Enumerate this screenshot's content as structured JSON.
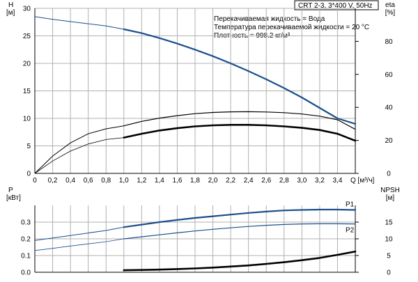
{
  "header": {
    "pump": "CRT 2-3, 3*400 V, 50Hz",
    "info_lines": [
      "Перекачиваемая жидкость = Вода",
      "Температура перекачиваемой жидкости = 20 °C",
      "Плотность = 998.2 кг/м³"
    ]
  },
  "chart_data": [
    {
      "type": "line",
      "left_axis": {
        "name": "H",
        "unit": "[м]",
        "ylim": [
          0,
          30
        ],
        "ticks": [
          0,
          5,
          10,
          15,
          20,
          25,
          30
        ]
      },
      "right_axis": {
        "name": "eta",
        "unit": "[%]",
        "ylim": [
          0,
          100
        ],
        "ticks": [
          0,
          20,
          40,
          60,
          80
        ]
      },
      "x_axis": {
        "label": "Q [м³/ч]",
        "xlim": [
          0,
          3.6
        ],
        "ticks": [
          "0",
          "0,2",
          "0,4",
          "0,6",
          "0,8",
          "1,0",
          "1,2",
          "1,4",
          "1,6",
          "1,8",
          "2,0",
          "2,2",
          "2,4",
          "2,6",
          "2,8",
          "3,0",
          "3,2",
          "3,4"
        ]
      },
      "grid": true,
      "series": [
        {
          "axis": "left",
          "color": "#1a4e8c",
          "width_thin": 1,
          "width_thick": 2.2,
          "thick_from": 1.0,
          "x": [
            0,
            0.2,
            0.4,
            0.6,
            0.8,
            1.0,
            1.2,
            1.4,
            1.6,
            1.8,
            2.0,
            2.2,
            2.4,
            2.6,
            2.8,
            3.0,
            3.2,
            3.4,
            3.6
          ],
          "y": [
            28.5,
            28.0,
            27.6,
            27.2,
            26.8,
            26.2,
            25.5,
            24.6,
            23.6,
            22.5,
            21.3,
            20.0,
            18.6,
            17.1,
            15.5,
            13.8,
            11.9,
            10.0,
            9.0
          ]
        },
        {
          "axis": "right",
          "color": "#000000",
          "width_thin": 1,
          "width_thick": 1.2,
          "thick_from": 1.0,
          "x": [
            0,
            0.2,
            0.4,
            0.6,
            0.8,
            1.0,
            1.2,
            1.4,
            1.6,
            1.8,
            2.0,
            2.2,
            2.4,
            2.6,
            2.8,
            3.0,
            3.2,
            3.4,
            3.6
          ],
          "y": [
            0,
            10.5,
            18.5,
            24.0,
            27.0,
            28.8,
            31.5,
            33.5,
            35.0,
            36.2,
            36.9,
            37.3,
            37.4,
            37.2,
            36.8,
            36.0,
            34.7,
            32.5,
            26.7
          ]
        },
        {
          "axis": "right",
          "color": "#000000",
          "width_thin": 0.8,
          "width_thick": 2.6,
          "thick_from": 1.0,
          "x": [
            0,
            0.2,
            0.4,
            0.6,
            0.8,
            1.0,
            1.2,
            1.4,
            1.6,
            1.8,
            2.0,
            2.2,
            2.4,
            2.6,
            2.8,
            3.0,
            3.2,
            3.4,
            3.6
          ],
          "y": [
            0,
            7.5,
            13.5,
            17.8,
            20.5,
            21.7,
            24.0,
            26.0,
            27.4,
            28.5,
            29.1,
            29.4,
            29.4,
            29.1,
            28.5,
            27.6,
            26.3,
            24.0,
            19.8
          ]
        }
      ]
    },
    {
      "type": "line",
      "left_axis": {
        "name": "P",
        "unit": "[кВт]",
        "ylim": [
          0,
          0.4
        ],
        "ticks": [
          "0.0",
          "0.1",
          "0.2",
          "0.3"
        ]
      },
      "right_axis": {
        "name": "NPSH",
        "unit": "[м]",
        "ylim": [
          0,
          20
        ],
        "ticks": [
          0,
          5,
          10,
          15
        ]
      },
      "x_axis": {
        "xlim": [
          0,
          3.6
        ]
      },
      "grid": true,
      "series": [
        {
          "name": "P1",
          "axis": "left",
          "color": "#1a4e8c",
          "width_thin": 1,
          "width_thick": 2.2,
          "thick_from": 1.0,
          "x": [
            0,
            0.2,
            0.4,
            0.6,
            0.8,
            1.0,
            1.2,
            1.4,
            1.6,
            1.8,
            2.0,
            2.2,
            2.4,
            2.6,
            2.8,
            3.0,
            3.2,
            3.4,
            3.6
          ],
          "y": [
            0.19,
            0.205,
            0.22,
            0.235,
            0.25,
            0.27,
            0.285,
            0.3,
            0.313,
            0.325,
            0.335,
            0.345,
            0.355,
            0.363,
            0.37,
            0.373,
            0.375,
            0.375,
            0.373
          ]
        },
        {
          "name": "P2",
          "axis": "left",
          "color": "#1a4e8c",
          "width_thin": 0.8,
          "width_thick": 1.2,
          "thick_from": 1.0,
          "x": [
            0,
            0.2,
            0.4,
            0.6,
            0.8,
            1.0,
            1.2,
            1.4,
            1.6,
            1.8,
            2.0,
            2.2,
            2.4,
            2.6,
            2.8,
            3.0,
            3.2,
            3.4,
            3.6
          ],
          "y": [
            0.13,
            0.143,
            0.157,
            0.17,
            0.183,
            0.2,
            0.212,
            0.224,
            0.236,
            0.247,
            0.257,
            0.266,
            0.274,
            0.281,
            0.286,
            0.289,
            0.29,
            0.29,
            0.289
          ]
        },
        {
          "axis": "right",
          "color": "#000000",
          "width_thin": 0,
          "width_thick": 2.6,
          "thick_from": 1.0,
          "x": [
            1.0,
            1.2,
            1.4,
            1.6,
            1.8,
            2.0,
            2.2,
            2.4,
            2.6,
            2.8,
            3.0,
            3.2,
            3.4,
            3.6
          ],
          "y": [
            0.6,
            0.68,
            0.8,
            0.95,
            1.15,
            1.4,
            1.7,
            2.05,
            2.5,
            3.0,
            3.6,
            4.3,
            5.2,
            6.2
          ]
        }
      ]
    }
  ]
}
